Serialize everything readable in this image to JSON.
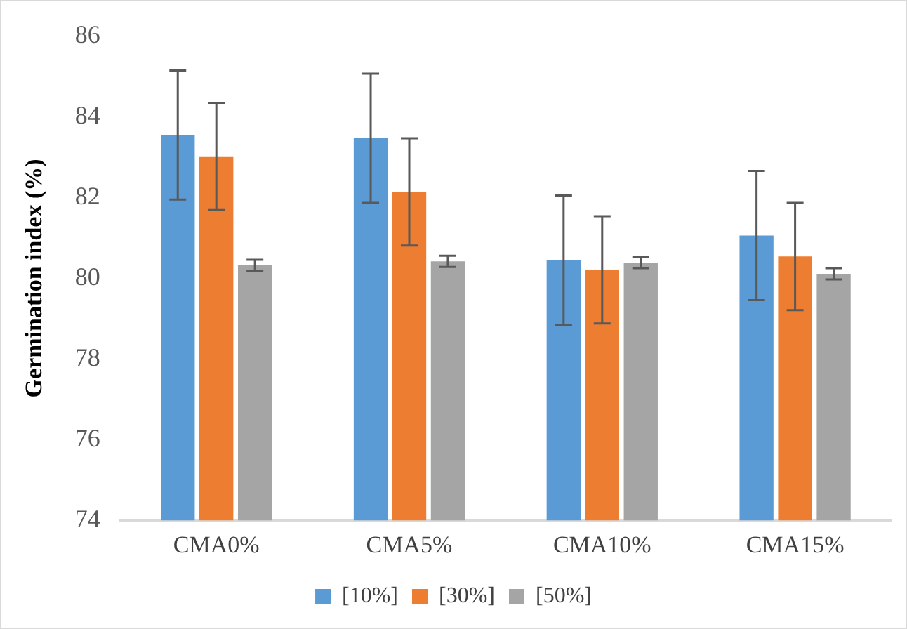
{
  "chart_data": {
    "type": "bar",
    "ylabel": "Germination index (%)",
    "categories": [
      "CMA0%",
      "CMA5%",
      "CMA10%",
      "CMA15%"
    ],
    "series": [
      {
        "name": "[10%]",
        "color": "#5b9bd5",
        "values": [
          83.55,
          83.47,
          80.45,
          81.06
        ],
        "errors": [
          1.6,
          1.6,
          1.6,
          1.6
        ]
      },
      {
        "name": "[30%]",
        "color": "#ed7d31",
        "values": [
          83.02,
          82.14,
          80.21,
          80.54
        ],
        "errors": [
          1.33,
          1.33,
          1.33,
          1.33
        ]
      },
      {
        "name": "[50%]",
        "color": "#a5a5a5",
        "values": [
          80.32,
          80.42,
          80.39,
          80.11
        ],
        "errors": [
          0.14,
          0.14,
          0.14,
          0.14
        ]
      }
    ],
    "ylim": [
      74,
      86
    ],
    "yticks": [
      74,
      76,
      78,
      80,
      82,
      84,
      86
    ],
    "grid": false,
    "legend": "bottom"
  }
}
